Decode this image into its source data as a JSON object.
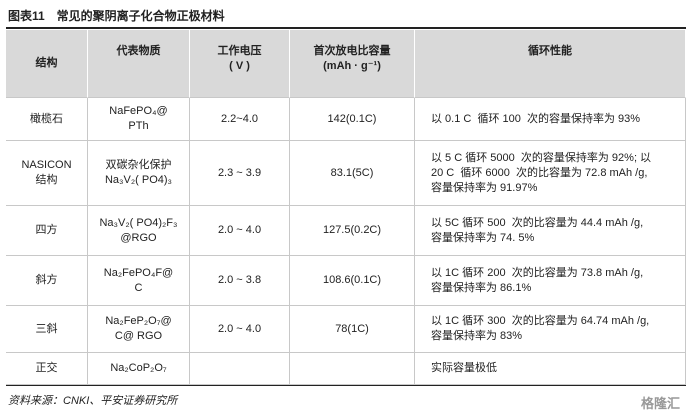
{
  "title": "图表11　常见的聚阴离子化合物正极材料",
  "table": {
    "header": [
      [
        "结构"
      ],
      [
        "代表物质"
      ],
      [
        "工作电压",
        "( V )"
      ],
      [
        "首次放电比容量",
        "(mAh · g⁻¹)"
      ],
      [
        "循环性能"
      ]
    ],
    "rows": [
      [
        [
          "橄榄石"
        ],
        [
          "NaFePO₄@",
          "PTh"
        ],
        [
          "2.2~4.0"
        ],
        [
          "142(0.1C)"
        ],
        [
          "以 0.1 C  循环 100  次的容量保持率为 93%"
        ]
      ],
      [
        [
          "NASICON",
          "结构"
        ],
        [
          "双碳杂化保护",
          "Na₃V₂( PO4)₃"
        ],
        [
          "2.3 ~ 3.9"
        ],
        [
          "83.1(5C)"
        ],
        [
          "以 5 C 循环 5000  次的容量保持率为 92%; 以",
          "20 C  循环 6000  次的比容量为 72.8 mAh /g,",
          "容量保持率为 91.97%"
        ]
      ],
      [
        [
          "四方"
        ],
        [
          "Na₃V₂( PO4)₂F₃",
          "@RGO"
        ],
        [
          "2.0 ~ 4.0"
        ],
        [
          "127.5(0.2C)"
        ],
        [
          "以 5C 循环 500  次的比容量为 44.4 mAh /g,",
          "容量保持率为 74. 5%"
        ]
      ],
      [
        [
          "斜方"
        ],
        [
          "Na₂FePO₄F@",
          "C"
        ],
        [
          "2.0 ~ 3.8"
        ],
        [
          "108.6(0.1C)"
        ],
        [
          "以 1C 循环 200  次的比容量为 73.8 mAh /g,",
          "容量保持率为 86.1%"
        ]
      ],
      [
        [
          "三斜"
        ],
        [
          "Na₂FeP₂O₇@",
          "C@ RGO"
        ],
        [
          "2.0 ~ 4.0"
        ],
        [
          "78(1C)"
        ],
        [
          "以 1C 循环 300  次的比容量为 64.74 mAh /g,",
          "容量保持率为 83%"
        ]
      ],
      [
        [
          "正交"
        ],
        [
          "Na₂CoP₂O₇"
        ],
        [],
        [],
        [
          "实际容量极低"
        ]
      ]
    ]
  },
  "source": "资料来源：CNKI、平安证券研究所",
  "watermark": "格隆汇"
}
